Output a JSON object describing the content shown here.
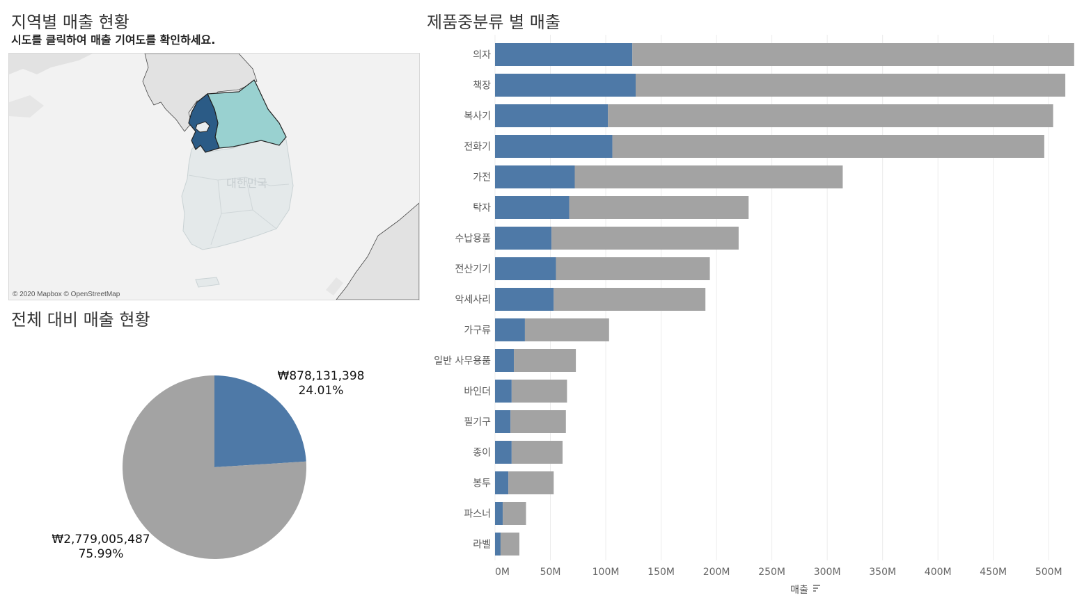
{
  "map_section": {
    "title": "지역별 매출 현황",
    "subtitle": "시도를 클릭하여 매출 기여도를 확인하세요.",
    "country_label": "대한민국",
    "attribution": "© 2020 Mapbox © OpenStreetMap",
    "colors": {
      "highlight_dark": "#2b5b86",
      "highlight_light": "#99d1d0",
      "land": "#e4e9ea",
      "neighbor": "#e2e2e2",
      "sea": "#f2f2f2"
    }
  },
  "pie_section": {
    "title": "전체 대비 매출 현황",
    "slices": [
      {
        "value_label": "₩878,131,398",
        "pct_label": "24.01%"
      },
      {
        "value_label": "₩2,779,005,487",
        "pct_label": "75.99%"
      }
    ]
  },
  "bar_section": {
    "title": "제품중분류 별 매출",
    "axis_label": "매출",
    "sort_icon": "sort-descending-icon"
  },
  "chart_data": [
    {
      "type": "pie",
      "values": [
        878131398,
        2779005487
      ],
      "percentages": [
        24.01,
        75.99
      ],
      "colors": [
        "#4e79a7",
        "#a3a3a3"
      ]
    },
    {
      "type": "bar",
      "orientation": "horizontal",
      "stacked": true,
      "categories": [
        "의자",
        "책장",
        "복사기",
        "전화기",
        "가전",
        "탁자",
        "수납용품",
        "전산기기",
        "악세사리",
        "가구류",
        "일반 사무용품",
        "바인더",
        "필기구",
        "종이",
        "봉투",
        "파스너",
        "라벨"
      ],
      "series": [
        {
          "values": [
            124,
            127,
            102,
            106,
            72,
            67,
            51,
            55,
            53,
            27,
            17,
            15,
            14,
            15,
            12,
            7,
            5
          ],
          "color": "#4e79a7"
        },
        {
          "values": [
            399,
            388,
            402,
            390,
            242,
            162,
            169,
            139,
            137,
            76,
            56,
            50,
            50,
            46,
            41,
            21,
            17
          ],
          "color": "#a3a3a3"
        }
      ],
      "xlabel": "매출",
      "xlim": [
        0,
        525
      ],
      "xticks": [
        0,
        50,
        100,
        150,
        200,
        250,
        300,
        350,
        400,
        450,
        500
      ],
      "xtick_labels": [
        "0M",
        "50M",
        "100M",
        "150M",
        "200M",
        "250M",
        "300M",
        "350M",
        "400M",
        "450M",
        "500M"
      ],
      "grid": true
    }
  ]
}
